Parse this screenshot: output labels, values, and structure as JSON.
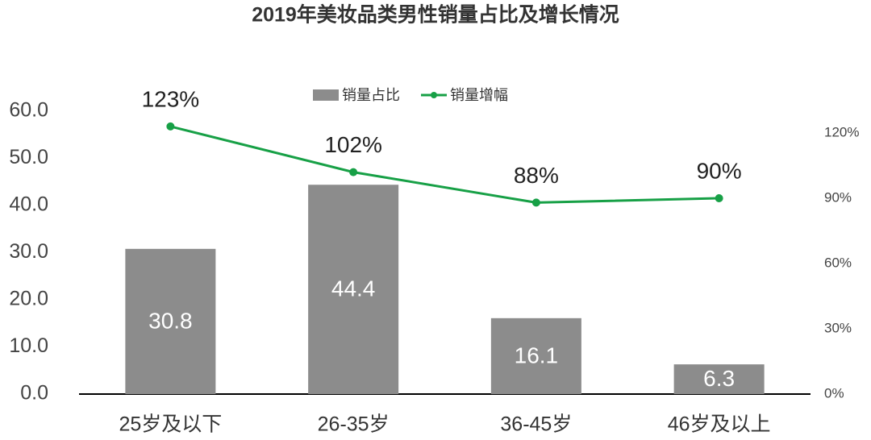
{
  "chart_data": {
    "type": "bar",
    "title": "2019年美妆品类男性销量占比及增长情况",
    "categories": [
      "25岁及以下",
      "26-35岁",
      "36-45岁",
      "46岁及以上"
    ],
    "series": [
      {
        "name": "销量占比",
        "type": "bar",
        "color": "#8c8c8c",
        "values": [
          30.8,
          44.4,
          16.1,
          6.3
        ]
      },
      {
        "name": "销量增幅",
        "type": "line",
        "axis": "y2",
        "color": "#17a046",
        "values": [
          123,
          102,
          88,
          90
        ],
        "value_labels": [
          "123%",
          "102%",
          "88%",
          "90%"
        ]
      }
    ],
    "ylim": [
      0,
      60
    ],
    "yticks": [
      {
        "value": 0,
        "label": "0.0"
      },
      {
        "value": 10,
        "label": "10.0"
      },
      {
        "value": 20,
        "label": "20.0"
      },
      {
        "value": 30,
        "label": "30.0"
      },
      {
        "value": 40,
        "label": "40.0"
      },
      {
        "value": 50,
        "label": "50.0"
      },
      {
        "value": 60,
        "label": "60.0"
      }
    ],
    "y2lim": [
      0,
      130
    ],
    "y2ticks": [
      {
        "value": 0,
        "label": "0%"
      },
      {
        "value": 30,
        "label": "30%"
      },
      {
        "value": 60,
        "label": "60%"
      },
      {
        "value": 90,
        "label": "90%"
      },
      {
        "value": 120,
        "label": "120%"
      }
    ],
    "legend": "top"
  }
}
